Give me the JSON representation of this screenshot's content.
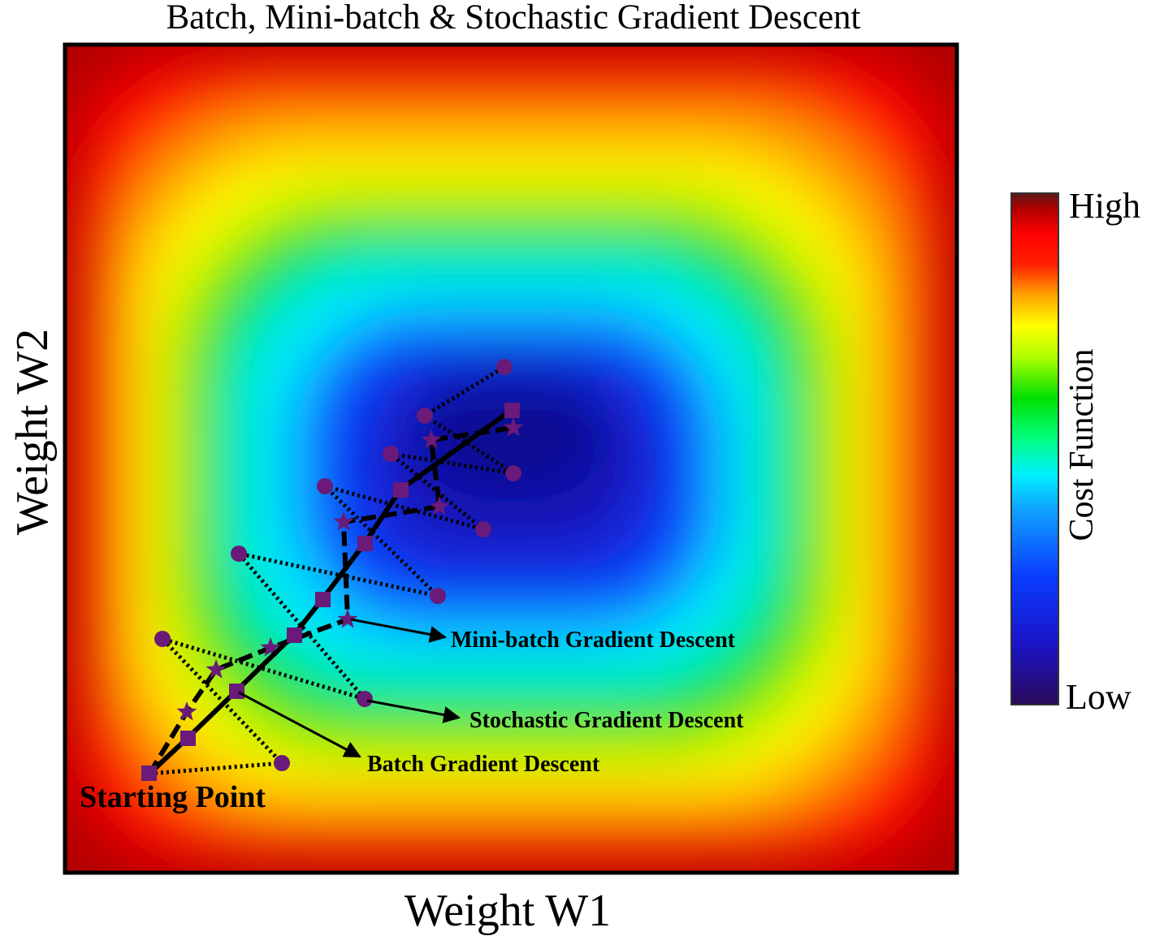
{
  "title": "Batch, Mini-batch & Stochastic Gradient Descent",
  "x_axis_label": "Weight W1",
  "y_axis_label": "Weight W2",
  "colorbar": {
    "label": "Cost Function",
    "high_label": "High",
    "low_label": "Low",
    "stops": [
      "#2a0a5a",
      "#1a14c8",
      "#0a3cff",
      "#10a0ff",
      "#00f0ff",
      "#00ff80",
      "#00e000",
      "#b0ff00",
      "#ffff00",
      "#ffa500",
      "#ff2000",
      "#ff0000",
      "#b00000",
      "#5a1a1a"
    ]
  },
  "annotations": {
    "start": "Starting Point",
    "minibatch": "Mini-batch Gradient Descent",
    "stochastic": "Stochastic Gradient Descent",
    "batch": "Batch Gradient Descent"
  },
  "marker_color": "#6a1a78",
  "line_color": "#000000"
}
